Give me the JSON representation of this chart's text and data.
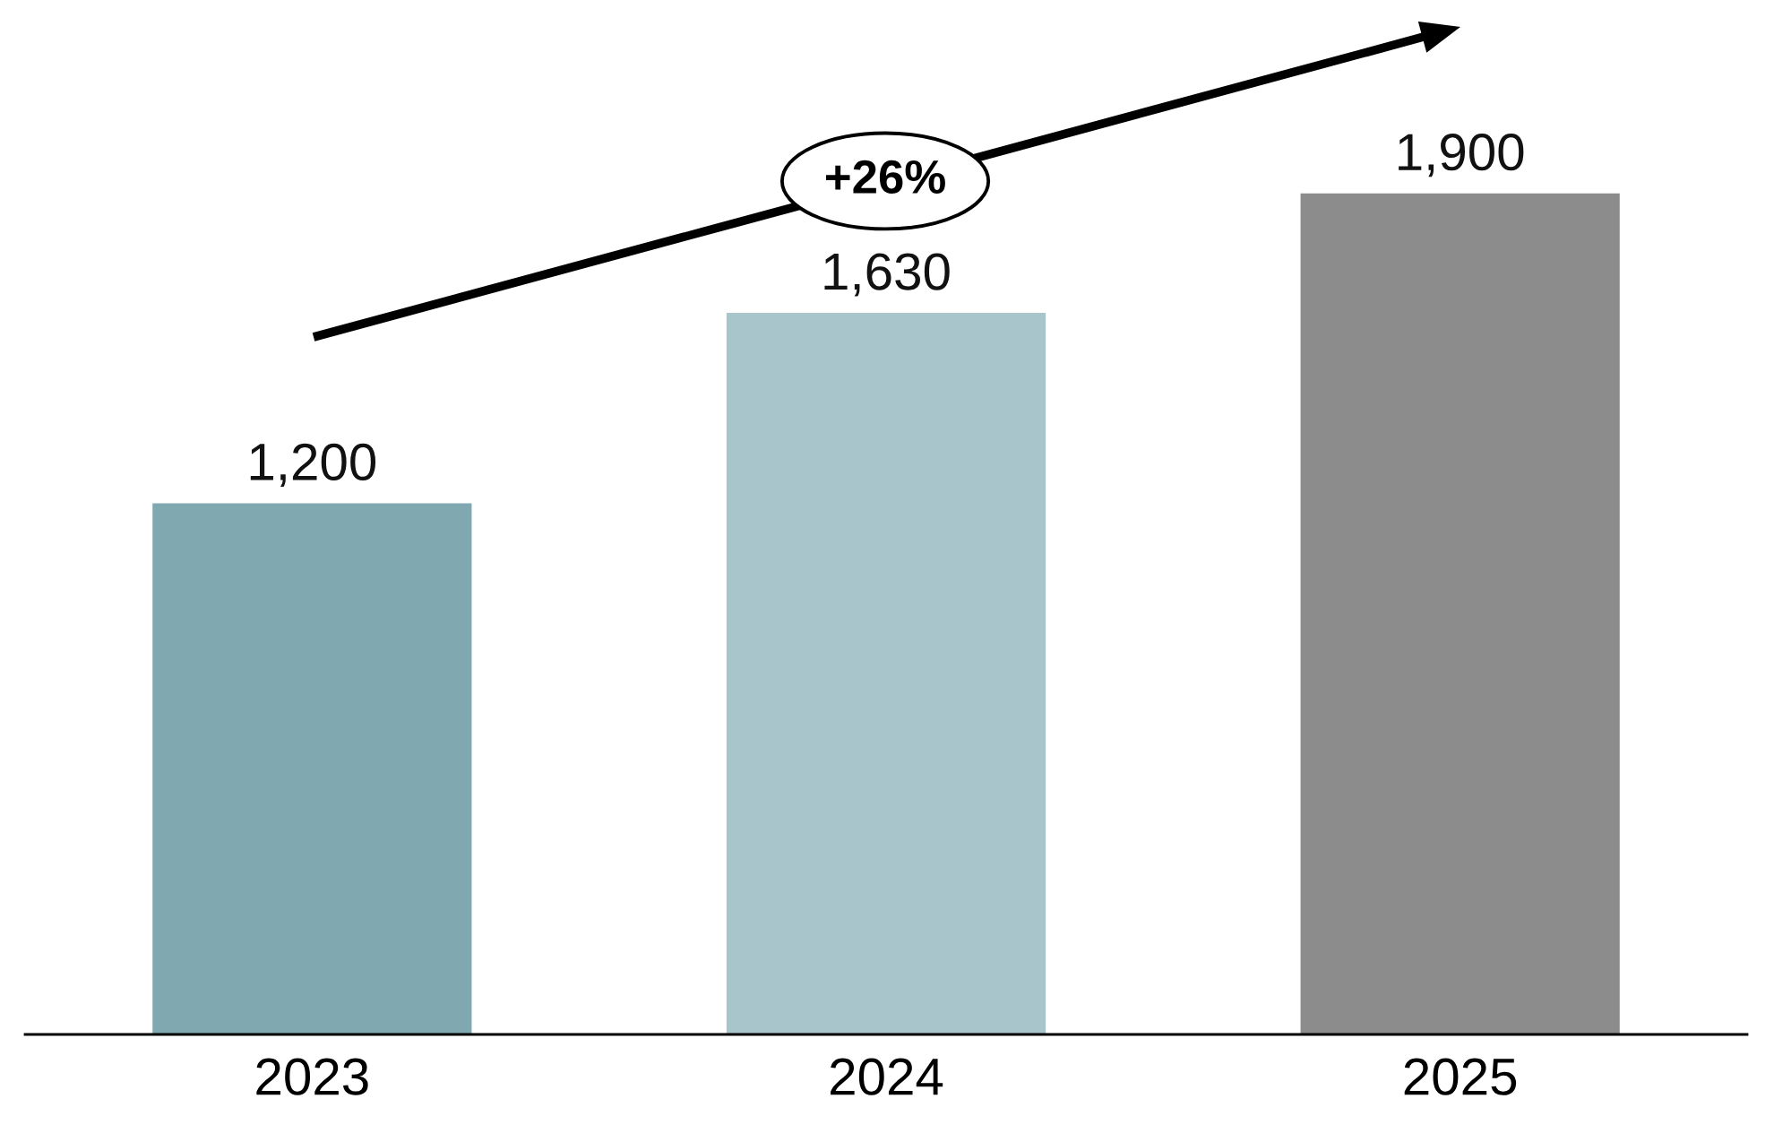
{
  "chart_data": {
    "type": "bar",
    "categories": [
      "2023",
      "2024",
      "2025"
    ],
    "values": [
      1200,
      1630,
      1900
    ],
    "colors": [
      "#7fa8b0",
      "#a8c5cb",
      "#8c8c8c"
    ],
    "value_labels": [
      "1,200",
      "1,630",
      "1,900"
    ],
    "annotations": [
      "+26%"
    ]
  }
}
